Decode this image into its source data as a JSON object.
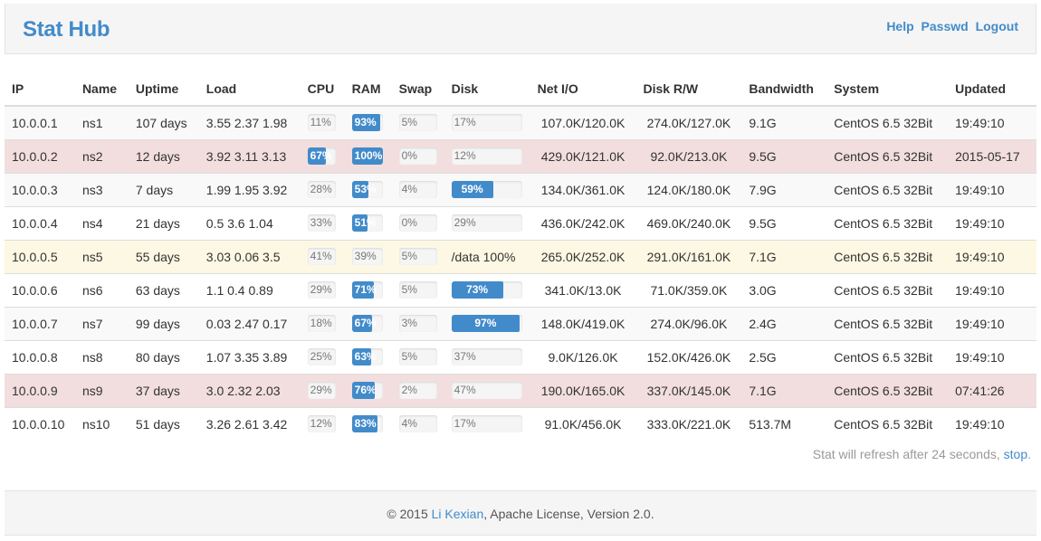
{
  "brand": "Stat Hub",
  "nav": [
    {
      "label": "Help",
      "name": "help-link"
    },
    {
      "label": "Passwd",
      "name": "passwd-link"
    },
    {
      "label": "Logout",
      "name": "logout-link"
    }
  ],
  "columns": [
    "IP",
    "Name",
    "Uptime",
    "Load",
    "CPU",
    "RAM",
    "Swap",
    "Disk",
    "Net I/O",
    "Disk R/W",
    "Bandwidth",
    "System",
    "Updated"
  ],
  "rows": [
    {
      "state": "normal",
      "ip": "10.0.0.1",
      "name": "ns1",
      "uptime": "107 days",
      "load": "3.55 2.37 1.98",
      "cpu": {
        "label": "11%",
        "value": 11,
        "filled": false
      },
      "ram": {
        "label": "93%",
        "value": 93,
        "filled": true
      },
      "swap": {
        "label": "5%",
        "value": 5,
        "filled": false
      },
      "disk": {
        "label": "17%",
        "value": 17,
        "filled": false,
        "text": ""
      },
      "net": "107.0K/120.0K",
      "diskrw": "274.0K/127.0K",
      "bandwidth": "9.1G",
      "system": "CentOS 6.5 32Bit",
      "updated": "19:49:10"
    },
    {
      "state": "danger",
      "ip": "10.0.0.2",
      "name": "ns2",
      "uptime": "12 days",
      "load": "3.92 3.11 3.13",
      "cpu": {
        "label": "67%",
        "value": 67,
        "filled": true
      },
      "ram": {
        "label": "100%",
        "value": 100,
        "filled": true
      },
      "swap": {
        "label": "0%",
        "value": 0,
        "filled": false
      },
      "disk": {
        "label": "12%",
        "value": 12,
        "filled": false,
        "text": ""
      },
      "net": "429.0K/121.0K",
      "diskrw": "92.0K/213.0K",
      "bandwidth": "9.5G",
      "system": "CentOS 6.5 32Bit",
      "updated": "2015-05-17"
    },
    {
      "state": "normal",
      "ip": "10.0.0.3",
      "name": "ns3",
      "uptime": "7 days",
      "load": "1.99 1.95 3.92",
      "cpu": {
        "label": "28%",
        "value": 28,
        "filled": false
      },
      "ram": {
        "label": "53%",
        "value": 53,
        "filled": true
      },
      "swap": {
        "label": "4%",
        "value": 4,
        "filled": false
      },
      "disk": {
        "label": "59%",
        "value": 59,
        "filled": true,
        "text": ""
      },
      "net": "134.0K/361.0K",
      "diskrw": "124.0K/180.0K",
      "bandwidth": "7.9G",
      "system": "CentOS 6.5 32Bit",
      "updated": "19:49:10"
    },
    {
      "state": "normal",
      "ip": "10.0.0.4",
      "name": "ns4",
      "uptime": "21 days",
      "load": "0.5 3.6 1.04",
      "cpu": {
        "label": "33%",
        "value": 33,
        "filled": false
      },
      "ram": {
        "label": "51%",
        "value": 51,
        "filled": true
      },
      "swap": {
        "label": "0%",
        "value": 0,
        "filled": false
      },
      "disk": {
        "label": "29%",
        "value": 29,
        "filled": false,
        "text": ""
      },
      "net": "436.0K/242.0K",
      "diskrw": "469.0K/240.0K",
      "bandwidth": "9.5G",
      "system": "CentOS 6.5 32Bit",
      "updated": "19:49:10"
    },
    {
      "state": "warning",
      "ip": "10.0.0.5",
      "name": "ns5",
      "uptime": "55 days",
      "load": "3.03 0.06 3.5",
      "cpu": {
        "label": "41%",
        "value": 41,
        "filled": false
      },
      "ram": {
        "label": "39%",
        "value": 39,
        "filled": false
      },
      "swap": {
        "label": "5%",
        "value": 5,
        "filled": false
      },
      "disk": {
        "label": "",
        "value": 0,
        "filled": false,
        "text": "/data 100%"
      },
      "net": "265.0K/252.0K",
      "diskrw": "291.0K/161.0K",
      "bandwidth": "7.1G",
      "system": "CentOS 6.5 32Bit",
      "updated": "19:49:10"
    },
    {
      "state": "normal",
      "ip": "10.0.0.6",
      "name": "ns6",
      "uptime": "63 days",
      "load": "1.1 0.4 0.89",
      "cpu": {
        "label": "29%",
        "value": 29,
        "filled": false
      },
      "ram": {
        "label": "71%",
        "value": 71,
        "filled": true
      },
      "swap": {
        "label": "5%",
        "value": 5,
        "filled": false
      },
      "disk": {
        "label": "73%",
        "value": 73,
        "filled": true,
        "text": ""
      },
      "net": "341.0K/13.0K",
      "diskrw": "71.0K/359.0K",
      "bandwidth": "3.0G",
      "system": "CentOS 6.5 32Bit",
      "updated": "19:49:10"
    },
    {
      "state": "normal",
      "ip": "10.0.0.7",
      "name": "ns7",
      "uptime": "99 days",
      "load": "0.03 2.47 0.17",
      "cpu": {
        "label": "18%",
        "value": 18,
        "filled": false
      },
      "ram": {
        "label": "67%",
        "value": 67,
        "filled": true
      },
      "swap": {
        "label": "3%",
        "value": 3,
        "filled": false
      },
      "disk": {
        "label": "97%",
        "value": 97,
        "filled": true,
        "text": ""
      },
      "net": "148.0K/419.0K",
      "diskrw": "274.0K/96.0K",
      "bandwidth": "2.4G",
      "system": "CentOS 6.5 32Bit",
      "updated": "19:49:10"
    },
    {
      "state": "normal",
      "ip": "10.0.0.8",
      "name": "ns8",
      "uptime": "80 days",
      "load": "1.07 3.35 3.89",
      "cpu": {
        "label": "25%",
        "value": 25,
        "filled": false
      },
      "ram": {
        "label": "63%",
        "value": 63,
        "filled": true
      },
      "swap": {
        "label": "5%",
        "value": 5,
        "filled": false
      },
      "disk": {
        "label": "37%",
        "value": 37,
        "filled": false,
        "text": ""
      },
      "net": "9.0K/126.0K",
      "diskrw": "152.0K/426.0K",
      "bandwidth": "2.5G",
      "system": "CentOS 6.5 32Bit",
      "updated": "19:49:10"
    },
    {
      "state": "danger",
      "ip": "10.0.0.9",
      "name": "ns9",
      "uptime": "37 days",
      "load": "3.0 2.32 2.03",
      "cpu": {
        "label": "29%",
        "value": 29,
        "filled": false
      },
      "ram": {
        "label": "76%",
        "value": 76,
        "filled": true
      },
      "swap": {
        "label": "2%",
        "value": 2,
        "filled": false
      },
      "disk": {
        "label": "47%",
        "value": 47,
        "filled": false,
        "text": ""
      },
      "net": "190.0K/165.0K",
      "diskrw": "337.0K/145.0K",
      "bandwidth": "7.1G",
      "system": "CentOS 6.5 32Bit",
      "updated": "07:41:26"
    },
    {
      "state": "normal",
      "ip": "10.0.0.10",
      "name": "ns10",
      "uptime": "51 days",
      "load": "3.26 2.61 3.42",
      "cpu": {
        "label": "12%",
        "value": 12,
        "filled": false
      },
      "ram": {
        "label": "83%",
        "value": 83,
        "filled": true
      },
      "swap": {
        "label": "4%",
        "value": 4,
        "filled": false
      },
      "disk": {
        "label": "17%",
        "value": 17,
        "filled": false,
        "text": ""
      },
      "net": "91.0K/456.0K",
      "diskrw": "333.0K/221.0K",
      "bandwidth": "513.7M",
      "system": "CentOS 6.5 32Bit",
      "updated": "19:49:10"
    }
  ],
  "refresh": {
    "text": "Stat will refresh after 24 seconds, ",
    "stop_label": "stop",
    "suffix": "."
  },
  "footer": {
    "prefix": "© 2015 ",
    "author": "Li Kexian",
    "suffix": ", Apache License, Version 2.0."
  },
  "colors": {
    "accent": "#428bca",
    "danger_row": "#f2dede",
    "warning_row": "#fcf8e3"
  }
}
